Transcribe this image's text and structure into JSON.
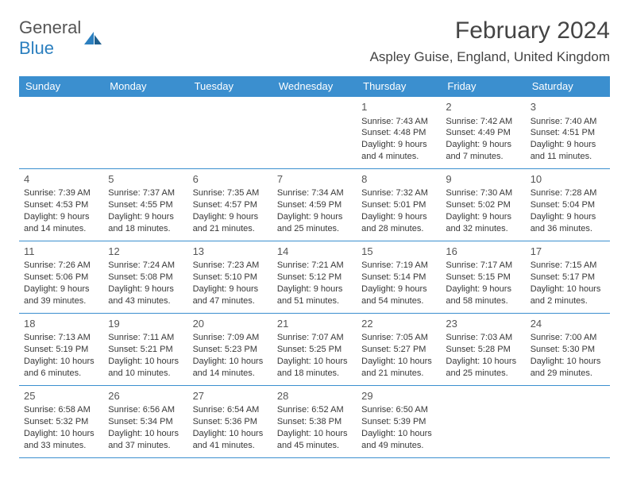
{
  "logo": {
    "part1": "General",
    "part2": "Blue"
  },
  "title": "February 2024",
  "location": "Aspley Guise, England, United Kingdom",
  "colors": {
    "header_bg": "#3b8fcf",
    "header_fg": "#ffffff",
    "border": "#3b8fcf"
  },
  "day_headers": [
    "Sunday",
    "Monday",
    "Tuesday",
    "Wednesday",
    "Thursday",
    "Friday",
    "Saturday"
  ],
  "weeks": [
    [
      null,
      null,
      null,
      null,
      {
        "n": "1",
        "sr": "7:43 AM",
        "ss": "4:48 PM",
        "dl": "9 hours and 4 minutes."
      },
      {
        "n": "2",
        "sr": "7:42 AM",
        "ss": "4:49 PM",
        "dl": "9 hours and 7 minutes."
      },
      {
        "n": "3",
        "sr": "7:40 AM",
        "ss": "4:51 PM",
        "dl": "9 hours and 11 minutes."
      }
    ],
    [
      {
        "n": "4",
        "sr": "7:39 AM",
        "ss": "4:53 PM",
        "dl": "9 hours and 14 minutes."
      },
      {
        "n": "5",
        "sr": "7:37 AM",
        "ss": "4:55 PM",
        "dl": "9 hours and 18 minutes."
      },
      {
        "n": "6",
        "sr": "7:35 AM",
        "ss": "4:57 PM",
        "dl": "9 hours and 21 minutes."
      },
      {
        "n": "7",
        "sr": "7:34 AM",
        "ss": "4:59 PM",
        "dl": "9 hours and 25 minutes."
      },
      {
        "n": "8",
        "sr": "7:32 AM",
        "ss": "5:01 PM",
        "dl": "9 hours and 28 minutes."
      },
      {
        "n": "9",
        "sr": "7:30 AM",
        "ss": "5:02 PM",
        "dl": "9 hours and 32 minutes."
      },
      {
        "n": "10",
        "sr": "7:28 AM",
        "ss": "5:04 PM",
        "dl": "9 hours and 36 minutes."
      }
    ],
    [
      {
        "n": "11",
        "sr": "7:26 AM",
        "ss": "5:06 PM",
        "dl": "9 hours and 39 minutes."
      },
      {
        "n": "12",
        "sr": "7:24 AM",
        "ss": "5:08 PM",
        "dl": "9 hours and 43 minutes."
      },
      {
        "n": "13",
        "sr": "7:23 AM",
        "ss": "5:10 PM",
        "dl": "9 hours and 47 minutes."
      },
      {
        "n": "14",
        "sr": "7:21 AM",
        "ss": "5:12 PM",
        "dl": "9 hours and 51 minutes."
      },
      {
        "n": "15",
        "sr": "7:19 AM",
        "ss": "5:14 PM",
        "dl": "9 hours and 54 minutes."
      },
      {
        "n": "16",
        "sr": "7:17 AM",
        "ss": "5:15 PM",
        "dl": "9 hours and 58 minutes."
      },
      {
        "n": "17",
        "sr": "7:15 AM",
        "ss": "5:17 PM",
        "dl": "10 hours and 2 minutes."
      }
    ],
    [
      {
        "n": "18",
        "sr": "7:13 AM",
        "ss": "5:19 PM",
        "dl": "10 hours and 6 minutes."
      },
      {
        "n": "19",
        "sr": "7:11 AM",
        "ss": "5:21 PM",
        "dl": "10 hours and 10 minutes."
      },
      {
        "n": "20",
        "sr": "7:09 AM",
        "ss": "5:23 PM",
        "dl": "10 hours and 14 minutes."
      },
      {
        "n": "21",
        "sr": "7:07 AM",
        "ss": "5:25 PM",
        "dl": "10 hours and 18 minutes."
      },
      {
        "n": "22",
        "sr": "7:05 AM",
        "ss": "5:27 PM",
        "dl": "10 hours and 21 minutes."
      },
      {
        "n": "23",
        "sr": "7:03 AM",
        "ss": "5:28 PM",
        "dl": "10 hours and 25 minutes."
      },
      {
        "n": "24",
        "sr": "7:00 AM",
        "ss": "5:30 PM",
        "dl": "10 hours and 29 minutes."
      }
    ],
    [
      {
        "n": "25",
        "sr": "6:58 AM",
        "ss": "5:32 PM",
        "dl": "10 hours and 33 minutes."
      },
      {
        "n": "26",
        "sr": "6:56 AM",
        "ss": "5:34 PM",
        "dl": "10 hours and 37 minutes."
      },
      {
        "n": "27",
        "sr": "6:54 AM",
        "ss": "5:36 PM",
        "dl": "10 hours and 41 minutes."
      },
      {
        "n": "28",
        "sr": "6:52 AM",
        "ss": "5:38 PM",
        "dl": "10 hours and 45 minutes."
      },
      {
        "n": "29",
        "sr": "6:50 AM",
        "ss": "5:39 PM",
        "dl": "10 hours and 49 minutes."
      },
      null,
      null
    ]
  ],
  "labels": {
    "sunrise": "Sunrise:",
    "sunset": "Sunset:",
    "daylight": "Daylight:"
  }
}
